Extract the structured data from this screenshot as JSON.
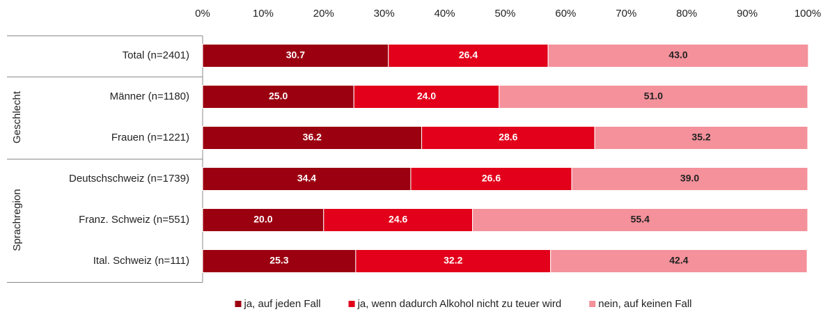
{
  "chart_data": {
    "type": "stacked_barh",
    "categories": [
      "Total (n=2401)",
      "Männer (n=1180)",
      "Frauen (n=1221)",
      "Deutschschweiz (n=1739)",
      "Franz. Schweiz (n=551)",
      "Ital. Schweiz (n=111)"
    ],
    "groups": [
      null,
      "Geschlecht",
      "Geschlecht",
      "Sprachregion",
      "Sprachregion",
      "Sprachregion"
    ],
    "series": [
      {
        "name": "ja, auf jeden Fall",
        "color": "#9b0010",
        "label_color": "#ffffff",
        "values": [
          30.7,
          25,
          36.2,
          34.4,
          20,
          25.3
        ],
        "value_labels": [
          "30.7",
          "25.0",
          "36.2",
          "34.4",
          "20.0",
          "25.3"
        ]
      },
      {
        "name": "ja, wenn dadurch Alkohol nicht zu teuer wird",
        "color": "#e2001a",
        "label_color": "#ffffff",
        "values": [
          26.4,
          24,
          28.6,
          26.6,
          24.6,
          32.2
        ],
        "value_labels": [
          "26.4",
          "24.0",
          "28.6",
          "26.6",
          "24.6",
          "32.2"
        ]
      },
      {
        "name": "nein, auf keinen Fall",
        "color": "#f4919b",
        "label_color": "#222222",
        "values": [
          43,
          51,
          35.2,
          39,
          55.4,
          42.4
        ],
        "value_labels": [
          "43.0",
          "51.0",
          "35.2",
          "39.0",
          "55.4",
          "42.4"
        ]
      }
    ],
    "xlim": [
      0,
      100
    ],
    "xticks": [
      {
        "value": 0,
        "label": "0%"
      },
      {
        "value": 10,
        "label": "10%"
      },
      {
        "value": 20,
        "label": "20%"
      },
      {
        "value": 30,
        "label": "30%"
      },
      {
        "value": 40,
        "label": "40%"
      },
      {
        "value": 50,
        "label": "50%"
      },
      {
        "value": 60,
        "label": "60%"
      },
      {
        "value": 70,
        "label": "70%"
      },
      {
        "value": 80,
        "label": "80%"
      },
      {
        "value": 90,
        "label": "90%"
      },
      {
        "value": 100,
        "label": "100%"
      }
    ],
    "legend": "bottom"
  }
}
